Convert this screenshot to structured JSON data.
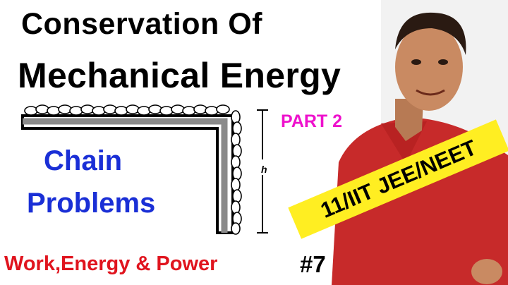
{
  "title": {
    "line1": "Conservation Of",
    "line2": "Mechanical Energy"
  },
  "part_label": "PART 2",
  "topic": {
    "line1": "Chain",
    "line2": "Problems"
  },
  "diagram": {
    "height_label": "h"
  },
  "badge": "11/IIT JEE/NEET",
  "series": "Work,Energy & Power",
  "episode": "#7",
  "colors": {
    "title": "#000000",
    "part": "#ee11cc",
    "topic": "#1a2fd6",
    "series": "#e0141e",
    "badge_bg": "#ffee22",
    "shirt": "#c72a2a",
    "skin": "#c98a62"
  }
}
